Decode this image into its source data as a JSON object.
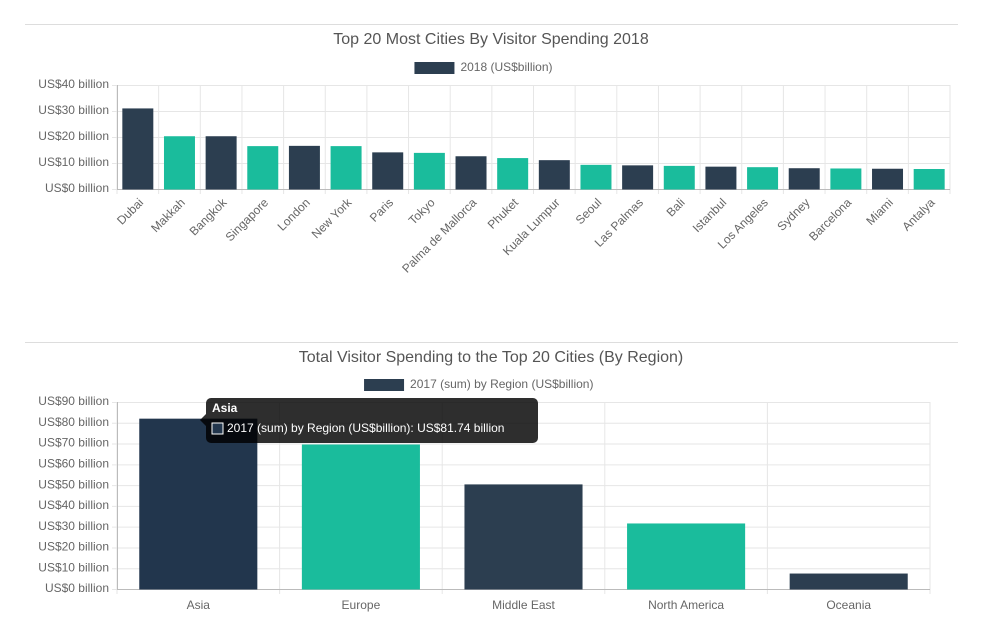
{
  "chart_data": [
    {
      "type": "bar",
      "title": "Top 20 Most Cities By Visitor Spending 2018",
      "categories": [
        "Dubai",
        "Makkah",
        "Bangkok",
        "Singapore",
        "London",
        "New York",
        "Paris",
        "Tokyo",
        "Palma de Mallorca",
        "Phuket",
        "Kuala Lumpur",
        "Seoul",
        "Las Palmas",
        "Bali",
        "Istanbul",
        "Los Angeles",
        "Sydney",
        "Barcelona",
        "Miami",
        "Antalya"
      ],
      "series": [
        {
          "name": "2018 (US$billion)",
          "color": "#2c3e50",
          "colors": [
            "#2c3e50",
            "#1abc9c",
            "#2c3e50",
            "#1abc9c",
            "#2c3e50",
            "#1abc9c",
            "#2c3e50",
            "#1abc9c",
            "#2c3e50",
            "#1abc9c",
            "#2c3e50",
            "#1abc9c",
            "#2c3e50",
            "#1abc9c",
            "#2c3e50",
            "#1abc9c",
            "#2c3e50",
            "#1abc9c",
            "#2c3e50",
            "#1abc9c"
          ],
          "values": [
            30.8,
            20.1,
            20.1,
            16.3,
            16.4,
            16.3,
            13.9,
            13.7,
            12.4,
            11.7,
            10.9,
            9.1,
            8.9,
            8.7,
            8.4,
            8.2,
            7.8,
            7.7,
            7.6,
            7.5
          ]
        }
      ],
      "ylim": [
        0,
        40
      ],
      "yticks": [
        {
          "value": 0,
          "label": "US$0 billion"
        },
        {
          "value": 10,
          "label": "US$10 billion"
        },
        {
          "value": 20,
          "label": "US$20 billion"
        },
        {
          "value": 30,
          "label": "US$30 billion"
        },
        {
          "value": 40,
          "label": "US$40 billion"
        }
      ],
      "grid": true
    },
    {
      "type": "bar",
      "title": "Total Visitor Spending to the Top 20 Cities (By Region)",
      "categories": [
        "Asia",
        "Europe",
        "Middle East",
        "North America",
        "Oceania"
      ],
      "series": [
        {
          "name": "2017 (sum) by Region (US$billion)",
          "color": "#2c3e50",
          "colors": [
            "#22364d",
            "#1abc9c",
            "#2c3e50",
            "#1abc9c",
            "#2c3e50"
          ],
          "values": [
            81.74,
            69.3,
            50.1,
            31.3,
            7.2
          ]
        }
      ],
      "ylim": [
        0,
        90
      ],
      "yticks": [
        {
          "value": 0,
          "label": "US$0 billion"
        },
        {
          "value": 10,
          "label": "US$10 billion"
        },
        {
          "value": 20,
          "label": "US$20 billion"
        },
        {
          "value": 30,
          "label": "US$30 billion"
        },
        {
          "value": 40,
          "label": "US$40 billion"
        },
        {
          "value": 50,
          "label": "US$50 billion"
        },
        {
          "value": 60,
          "label": "US$60 billion"
        },
        {
          "value": 70,
          "label": "US$70 billion"
        },
        {
          "value": 80,
          "label": "US$80 billion"
        },
        {
          "value": 90,
          "label": "US$90 billion"
        }
      ],
      "grid": true,
      "tooltip": {
        "title": "Asia",
        "text": "2017 (sum) by Region (US$billion): US$81.74 billion"
      }
    }
  ]
}
